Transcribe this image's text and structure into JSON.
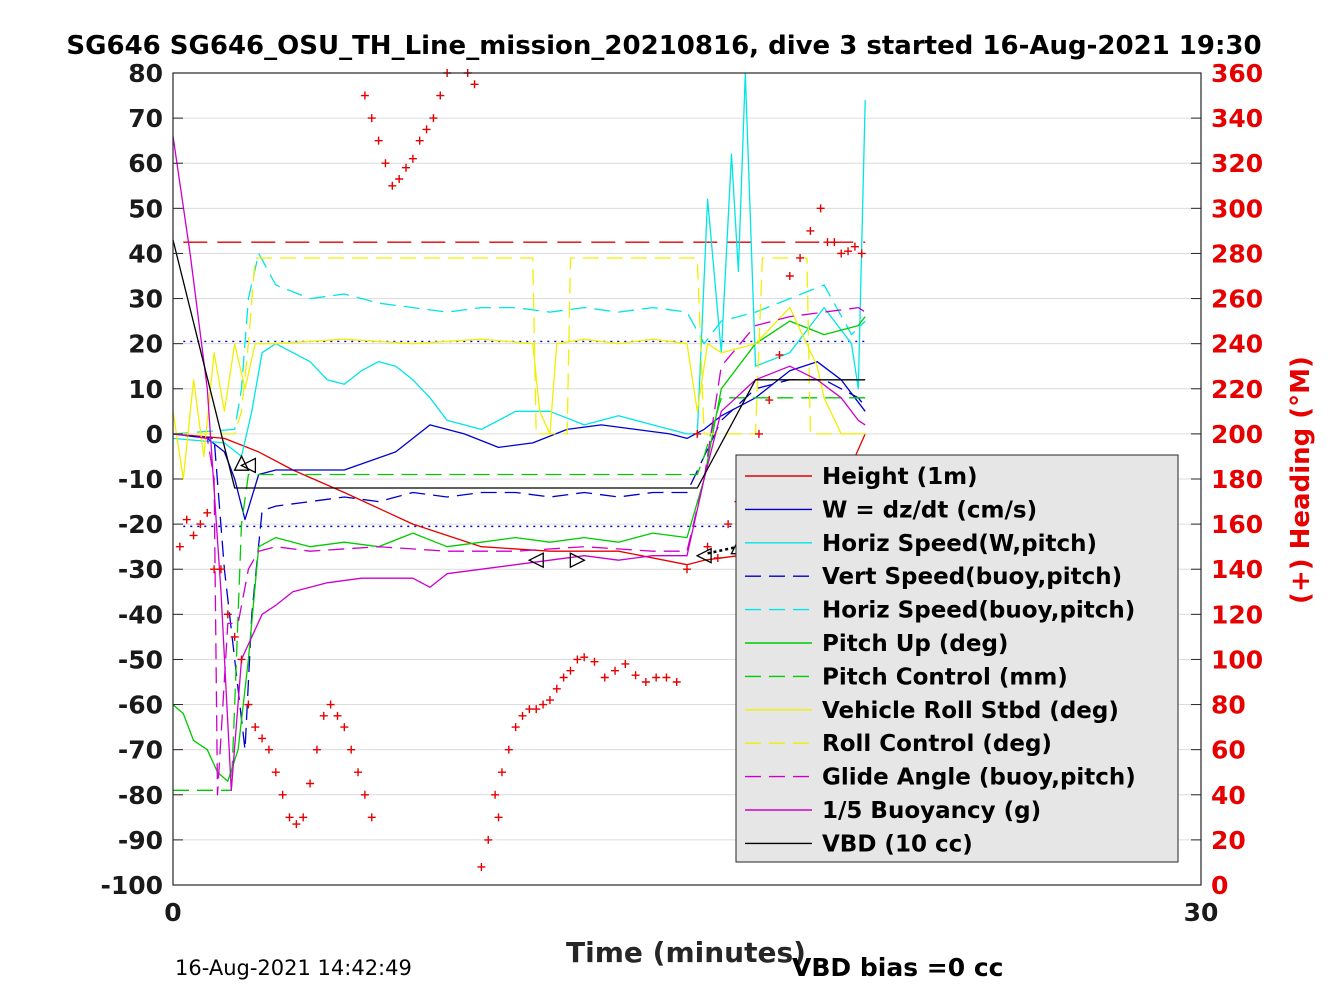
{
  "chart_data": {
    "type": "line",
    "title": "SG646 SG646_OSU_TH_Line_mission_20210816, dive 3 started 16-Aug-2021 19:30",
    "xlabel": "Time (minutes)",
    "ylabel": "",
    "ylabel_right": "(+) Heading (°M)",
    "xlim": [
      0,
      30
    ],
    "ylim": [
      -100,
      80
    ],
    "ylim_right": [
      0,
      360
    ],
    "x_ticks": [
      "0",
      "30"
    ],
    "y_ticks": [
      "80",
      "70",
      "60",
      "50",
      "40",
      "30",
      "20",
      "10",
      "0",
      "-10",
      "-20",
      "-30",
      "-40",
      "-50",
      "-60",
      "-70",
      "-80",
      "-90",
      "-100"
    ],
    "y_ticks_right": [
      "360",
      "340",
      "320",
      "300",
      "280",
      "260",
      "240",
      "220",
      "200",
      "180",
      "160",
      "140",
      "120",
      "100",
      "80",
      "60",
      "40",
      "20",
      "0"
    ],
    "grid": "horizontal",
    "legend_position": "bottom-right",
    "footer_left": "16-Aug-2021 14:42:49",
    "footer_right": "VBD bias =0 cc",
    "colors": {
      "red": "#e60000",
      "blue": "#0000cc",
      "cyan": "#00e5e5",
      "green": "#00cc00",
      "yellow": "#f0f000",
      "magenta": "#cc00cc",
      "black": "#000000"
    },
    "series": [
      {
        "name": "Height (1m)",
        "color": "#e60000",
        "style": "solid",
        "x": [
          0,
          1.5,
          2.5,
          3.5,
          5,
          7,
          9,
          11,
          13,
          15,
          15.5,
          16.5,
          17.5,
          18.5,
          19.5,
          20.2
        ],
        "y": [
          0,
          -1,
          -4,
          -8,
          -13,
          -20,
          -25,
          -26,
          -26,
          -29,
          -28,
          -27,
          -26,
          -23,
          -12,
          0
        ]
      },
      {
        "name": "W = dz/dt (cm/s)",
        "color": "#0000cc",
        "style": "solid",
        "x": [
          0,
          1.0,
          1.5,
          1.8,
          2.1,
          2.5,
          3.0,
          4.0,
          5.0,
          6.5,
          7.5,
          8.5,
          9.5,
          10.5,
          11.5,
          12.5,
          13.5,
          14.5,
          15.0,
          15.5,
          16.0,
          17.0,
          18.0,
          18.8,
          19.5,
          20.0,
          20.2
        ],
        "y": [
          0,
          -1,
          -4,
          -10,
          -19,
          -9,
          -8,
          -8,
          -8,
          -4,
          2,
          0,
          -3,
          -2,
          1,
          2,
          1,
          0,
          -1,
          1,
          4,
          8,
          14,
          16,
          12,
          7,
          5
        ]
      },
      {
        "name": "Horiz Speed(W,pitch)",
        "color": "#00e5e5",
        "style": "solid",
        "x": [
          0,
          1.5,
          2.0,
          2.3,
          2.6,
          3.0,
          4.0,
          4.5,
          5.0,
          5.5,
          6.0,
          6.5,
          7.0,
          7.5,
          8.0,
          9.0,
          10.0,
          11.0,
          12.0,
          13.0,
          14.0,
          15.0,
          15.3,
          15.6,
          16.0,
          16.3,
          16.5,
          16.7,
          17.0,
          18.0,
          19.0,
          19.8,
          20.0,
          20.2
        ],
        "y": [
          -1,
          -2,
          -5,
          5,
          18,
          20,
          16,
          12,
          11,
          14,
          16,
          15,
          12,
          8,
          3,
          1,
          5,
          5,
          2,
          4,
          2,
          0,
          0,
          52,
          18,
          62,
          36,
          80,
          15,
          18,
          28,
          20,
          10,
          74
        ]
      },
      {
        "name": "Vert Speed(buoy,pitch)",
        "color": "#0000cc",
        "style": "dashed",
        "x": [
          0,
          1.2,
          1.5,
          1.8,
          2.1,
          2.3,
          2.6,
          3.0,
          4.0,
          5.0,
          6.0,
          7.0,
          8.0,
          9.0,
          10.0,
          11.0,
          12.0,
          13.0,
          14.0,
          15.0,
          15.5,
          16.0,
          17.0,
          18.0,
          19.0,
          20.0,
          20.2
        ],
        "y": [
          0,
          -1,
          -30,
          -50,
          -70,
          -40,
          -17,
          -16,
          -15,
          -14,
          -15,
          -13,
          -14,
          -13,
          -13,
          -14,
          -13,
          -14,
          -13,
          -13,
          -5,
          3,
          10,
          12,
          12,
          8,
          6
        ]
      },
      {
        "name": "Horiz Speed(buoy,pitch)",
        "color": "#00e5e5",
        "style": "dashed",
        "x": [
          0,
          1.8,
          2.0,
          2.2,
          2.5,
          3.0,
          4.0,
          5.0,
          6.0,
          7.0,
          8.0,
          9.0,
          10.0,
          11.0,
          12.0,
          13.0,
          14.0,
          15.0,
          15.5,
          16.0,
          17.0,
          18.0,
          19.0,
          19.8,
          20.2
        ],
        "y": [
          0,
          1,
          10,
          30,
          40,
          33,
          30,
          31,
          29,
          28,
          27,
          28,
          28,
          27,
          28,
          27,
          28,
          27,
          20,
          25,
          27,
          30,
          33,
          22,
          25
        ]
      },
      {
        "name": "Pitch Up (deg)",
        "color": "#00cc00",
        "style": "solid",
        "x": [
          0,
          0.3,
          0.6,
          1.0,
          1.3,
          1.6,
          1.9,
          2.2,
          2.5,
          3.0,
          4.0,
          5.0,
          6.0,
          7.0,
          8.0,
          9.0,
          10.0,
          11.0,
          12.0,
          13.0,
          14.0,
          15.0,
          15.5,
          16.0,
          17.0,
          18.0,
          19.0,
          20.0,
          20.2
        ],
        "y": [
          -60,
          -62,
          -68,
          -70,
          -75,
          -77,
          -70,
          -50,
          -25,
          -23,
          -25,
          -24,
          -25,
          -22,
          -25,
          -24,
          -23,
          -24,
          -23,
          -24,
          -22,
          -23,
          -10,
          10,
          20,
          25,
          22,
          24,
          26
        ]
      },
      {
        "name": "Pitch Control (mm)",
        "color": "#00cc00",
        "style": "dashed",
        "x": [
          0,
          1.7,
          1.8,
          2.0,
          2.2,
          2.4,
          15.3,
          15.5,
          16.0,
          20.2
        ],
        "y": [
          -79,
          -79,
          -60,
          -20,
          -9,
          -9,
          -9,
          -5,
          8,
          8
        ]
      },
      {
        "name": "Vehicle Roll Stbd (deg)",
        "color": "#f0f000",
        "style": "solid",
        "x": [
          0,
          0.3,
          0.6,
          0.9,
          1.2,
          1.5,
          1.8,
          2.1,
          2.4,
          3.0,
          5.0,
          7.0,
          9.0,
          10.5,
          10.7,
          11.0,
          11.2,
          12.0,
          13.0,
          14.0,
          15.0,
          15.3,
          15.6,
          16.0,
          17.0,
          18.0,
          18.8,
          19.0,
          19.5,
          20.2
        ],
        "y": [
          5,
          -10,
          12,
          -5,
          18,
          5,
          20,
          10,
          20,
          20,
          21,
          20,
          21,
          20,
          5,
          0,
          20,
          21,
          20,
          21,
          20,
          5,
          20,
          18,
          20,
          28,
          15,
          8,
          0,
          0
        ]
      },
      {
        "name": "Roll Control (deg)",
        "color": "#f0f000",
        "style": "dashed",
        "x": [
          0,
          1.8,
          2.0,
          2.2,
          2.4,
          10.5,
          10.6,
          11.5,
          11.6,
          15.3,
          15.5,
          17.0,
          17.2,
          18.5,
          18.6,
          20.2
        ],
        "y": [
          0,
          0,
          5,
          20,
          39,
          39,
          0,
          0,
          39,
          39,
          0,
          0,
          39,
          39,
          0,
          0
        ]
      },
      {
        "name": "Glide Angle (buoy,pitch)",
        "color": "#cc00cc",
        "style": "dashed",
        "x": [
          0,
          1.0,
          1.2,
          1.3,
          1.6,
          1.9,
          2.2,
          2.5,
          3.0,
          4.0,
          6.0,
          8.0,
          10.0,
          12.0,
          14.0,
          15.0,
          15.5,
          16.0,
          17.0,
          18.0,
          19.0,
          20.0,
          20.2
        ],
        "y": [
          0,
          -1,
          -10,
          -80,
          -42,
          -42,
          -30,
          -26,
          -25,
          -26,
          -25,
          -26,
          -26,
          -25,
          -26,
          -26,
          -10,
          15,
          24,
          26,
          27,
          28,
          27
        ]
      },
      {
        "name": "1/5 Buoyancy (g)",
        "color": "#cc00cc",
        "style": "solid",
        "x": [
          0,
          0.5,
          1.0,
          1.4,
          1.7,
          2.0,
          2.3,
          2.6,
          3.0,
          3.5,
          4.5,
          5.5,
          7.0,
          7.5,
          8.0,
          9.0,
          10.0,
          11.0,
          12.0,
          13.0,
          14.0,
          15.0,
          15.5,
          16.0,
          17.0,
          18.0,
          18.8,
          19.5,
          20.0,
          20.2
        ],
        "y": [
          66,
          40,
          10,
          -35,
          -79,
          -50,
          -45,
          -40,
          -38,
          -35,
          -33,
          -32,
          -32,
          -34,
          -31,
          -30,
          -29,
          -28,
          -27,
          -28,
          -27,
          -27,
          -10,
          5,
          12,
          15,
          12,
          8,
          3,
          2
        ]
      },
      {
        "name": "VBD (10 cc)",
        "color": "#000000",
        "style": "solid",
        "x": [
          0,
          1.8,
          15.3,
          17.0,
          20.2
        ],
        "y": [
          43,
          -12,
          -12,
          12,
          12
        ]
      }
    ],
    "heading_markers": {
      "name": "(+) Heading",
      "color": "#e60000",
      "x": [
        0.2,
        0.4,
        0.6,
        0.8,
        1.0,
        1.2,
        1.4,
        1.6,
        1.8,
        2.0,
        2.2,
        2.4,
        2.6,
        2.8,
        3.0,
        3.2,
        3.4,
        3.6,
        3.8,
        4.0,
        4.2,
        4.4,
        4.6,
        4.8,
        5.0,
        5.2,
        5.4,
        5.6,
        5.8,
        5.6,
        5.8,
        6.0,
        6.2,
        6.4,
        6.6,
        6.8,
        7.0,
        7.2,
        7.4,
        7.6,
        7.8,
        8.0,
        8.2,
        8.4,
        8.6,
        8.8,
        9.0,
        9.2,
        9.4,
        9.5,
        9.6,
        9.8,
        10.0,
        10.2,
        10.4,
        10.6,
        10.8,
        11.0,
        11.2,
        11.4,
        11.6,
        11.8,
        12.0,
        12.3,
        12.6,
        12.9,
        13.2,
        13.5,
        13.8,
        14.1,
        14.4,
        14.7,
        15.0,
        15.3,
        15.6,
        15.9,
        16.2,
        16.5,
        16.8,
        17.1,
        17.4,
        17.7,
        18.0,
        18.3,
        18.6,
        18.9,
        19.1,
        19.3,
        19.5,
        19.7,
        19.9,
        20.1
      ],
      "y": [
        150,
        162,
        155,
        160,
        165,
        140,
        140,
        120,
        110,
        100,
        80,
        70,
        65,
        60,
        50,
        40,
        30,
        27,
        30,
        45,
        60,
        75,
        80,
        75,
        70,
        60,
        50,
        40,
        30,
        350,
        340,
        330,
        320,
        310,
        313,
        318,
        322,
        330,
        335,
        340,
        350,
        360,
        365,
        365,
        360,
        355,
        8,
        20,
        40,
        30,
        50,
        60,
        70,
        75,
        78,
        78,
        80,
        82,
        87,
        92,
        95,
        100,
        101,
        99,
        92,
        95,
        98,
        93,
        90,
        92,
        92,
        90,
        140,
        200,
        150,
        145,
        160,
        170,
        185,
        200,
        215,
        235,
        270,
        278,
        290,
        300,
        285,
        285,
        280,
        281,
        283,
        280
      ]
    },
    "reference_lines": [
      {
        "y": 42.5,
        "color": "#e60000",
        "style": "long-dash"
      },
      {
        "y": 20.5,
        "color": "#0000cc",
        "style": "dotted"
      },
      {
        "y": -20.5,
        "color": "#0000cc",
        "style": "dotted"
      }
    ],
    "triangle_markers": [
      {
        "x": 2.0,
        "y": -6.5,
        "dir": "up"
      },
      {
        "x": 2.2,
        "y": -7,
        "dir": "left"
      },
      {
        "x": 10.6,
        "y": -28,
        "dir": "left"
      },
      {
        "x": 11.8,
        "y": -28,
        "dir": "right"
      },
      {
        "x": 15.5,
        "y": -27,
        "dir": "left"
      },
      {
        "x": 16.5,
        "y": -25,
        "dir": "up"
      },
      {
        "x": 17.6,
        "y": -20,
        "dir": "right"
      },
      {
        "x": 18.9,
        "y": -9,
        "dir": "left"
      }
    ],
    "descent_curve_markers": {
      "x": [
        15.6,
        15.9,
        16.2,
        16.5,
        16.8,
        17.1,
        17.4,
        17.6
      ],
      "y": [
        -26.5,
        -26,
        -25.5,
        -25,
        -24,
        -23,
        -21.5,
        -20
      ]
    }
  }
}
